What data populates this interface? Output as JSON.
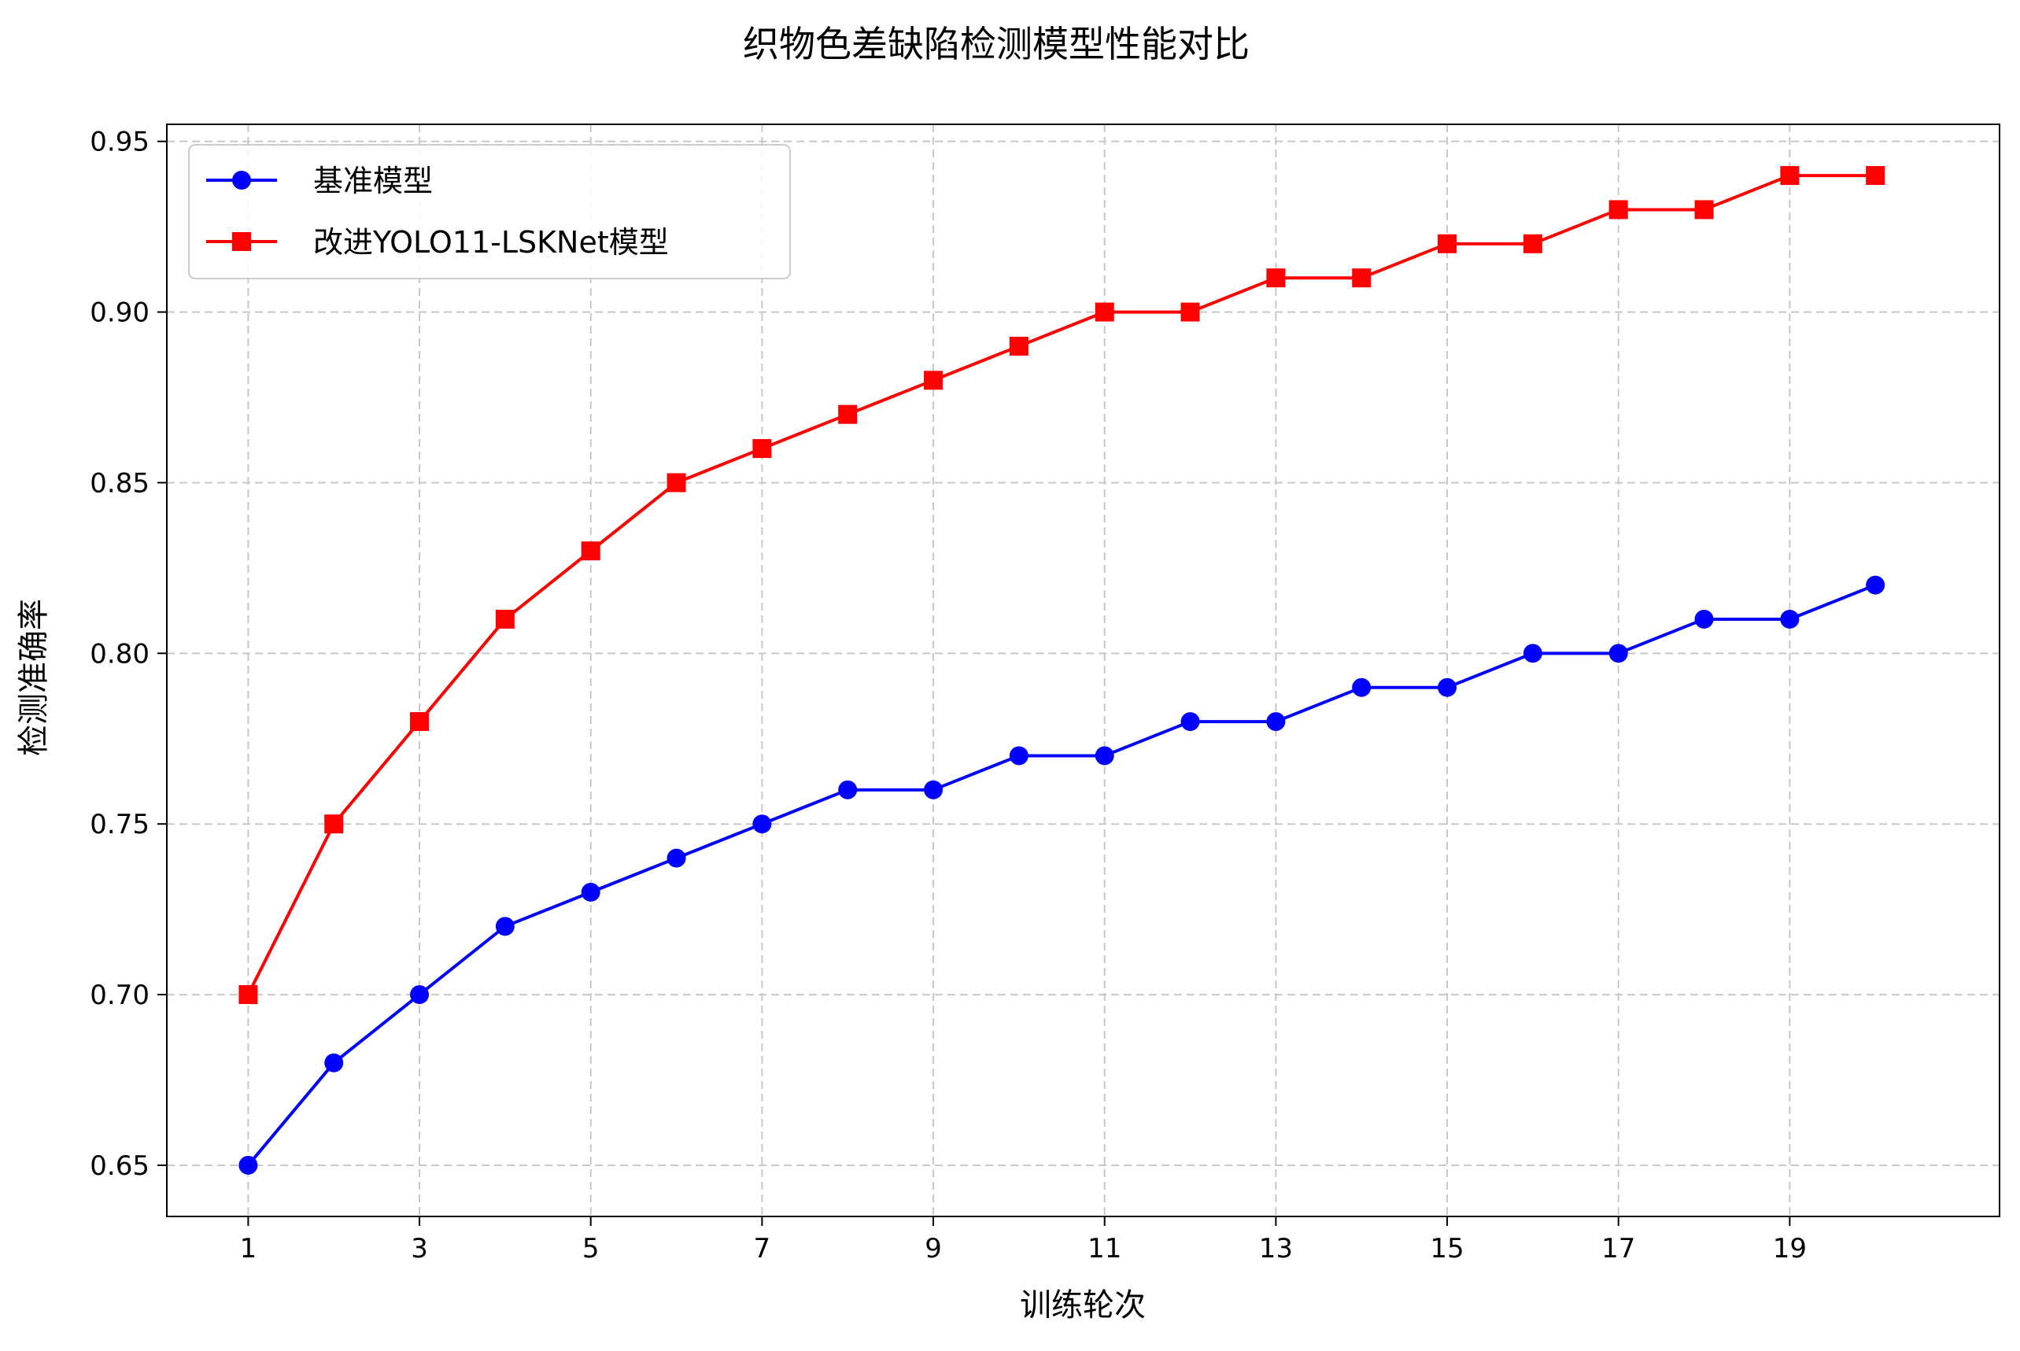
{
  "chart_data": {
    "type": "line",
    "title": "织物色差缺陷检测模型性能对比",
    "xlabel": "训练轮次",
    "ylabel": "检测准确率",
    "x": [
      1,
      2,
      3,
      4,
      5,
      6,
      7,
      8,
      9,
      10,
      11,
      12,
      13,
      14,
      15,
      16,
      17,
      18,
      19,
      20
    ],
    "xticks": [
      1,
      3,
      5,
      7,
      9,
      11,
      13,
      15,
      17,
      19
    ],
    "yticks": [
      0.65,
      0.7,
      0.75,
      0.8,
      0.85,
      0.9,
      0.95
    ],
    "xlim": [
      0.05,
      21.45
    ],
    "ylim": [
      0.635,
      0.955
    ],
    "grid": true,
    "legend_position": "top-left",
    "series": [
      {
        "name": "基准模型",
        "color": "#0000ff",
        "marker": "circle",
        "values": [
          0.65,
          0.68,
          0.7,
          0.72,
          0.73,
          0.74,
          0.75,
          0.76,
          0.76,
          0.77,
          0.77,
          0.78,
          0.78,
          0.79,
          0.79,
          0.8,
          0.8,
          0.81,
          0.81,
          0.82
        ]
      },
      {
        "name": "改进YOLO11-LSKNet模型",
        "color": "#ff0000",
        "marker": "square",
        "values": [
          0.7,
          0.75,
          0.78,
          0.81,
          0.83,
          0.85,
          0.86,
          0.87,
          0.88,
          0.89,
          0.9,
          0.9,
          0.91,
          0.91,
          0.92,
          0.92,
          0.93,
          0.93,
          0.94,
          0.94
        ]
      }
    ]
  }
}
